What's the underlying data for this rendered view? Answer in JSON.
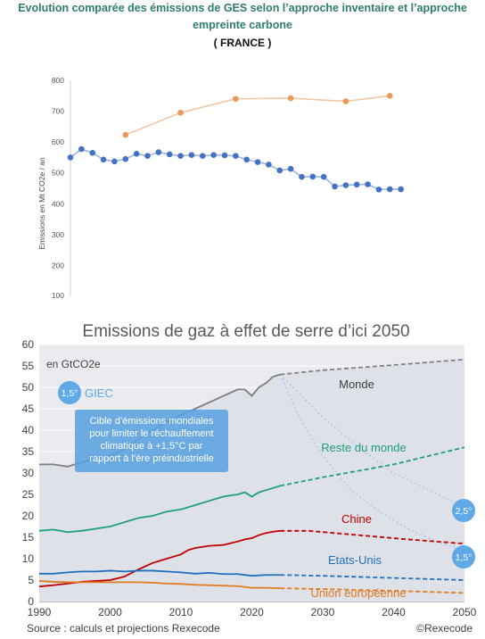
{
  "chart_data": [
    {
      "type": "line",
      "title_lines": [
        "Evolution comparée des émissions de GES selon l’approche inventaire et l’approche",
        "empreinte carbone"
      ],
      "subtitle": "( FRANCE )",
      "ylabel": "Emissions en Mt CO2e / an",
      "ylim": [
        100,
        800
      ],
      "yticks": [
        200,
        300,
        400,
        500,
        600,
        700,
        800
      ],
      "partial_tick": "100",
      "xlim": [
        1990,
        2021
      ],
      "series": [
        {
          "color": "#e99a5a",
          "x": [
            1995,
            2000,
            2005,
            2010,
            2015,
            2019
          ],
          "values": [
            623,
            695,
            740,
            742,
            732,
            750
          ]
        },
        {
          "color": "#4472c4",
          "x": [
            1990,
            1991,
            1992,
            1993,
            1994,
            1995,
            1996,
            1997,
            1998,
            1999,
            2000,
            2001,
            2002,
            2003,
            2004,
            2005,
            2006,
            2007,
            2008,
            2009,
            2010,
            2011,
            2012,
            2013,
            2014,
            2015,
            2016,
            2017,
            2018,
            2019,
            2020
          ],
          "values": [
            550,
            577,
            565,
            543,
            537,
            545,
            562,
            555,
            567,
            560,
            555,
            558,
            555,
            558,
            557,
            555,
            543,
            535,
            527,
            508,
            513,
            487,
            488,
            487,
            456,
            460,
            462,
            463,
            446,
            447,
            447
          ]
        }
      ]
    },
    {
      "type": "area",
      "title": "Emissions de gaz à effet de serre d’ici 2050",
      "unit_label": "en GtCO2e",
      "ylim": [
        0,
        60
      ],
      "yticks": [
        0,
        5,
        10,
        15,
        20,
        25,
        30,
        35,
        40,
        45,
        50,
        55,
        60
      ],
      "xlim": [
        1990,
        2050
      ],
      "xticks": [
        1990,
        2000,
        2010,
        2020,
        2030,
        2040,
        2050
      ],
      "source": "Source : calculs et projections Rexecode",
      "copyright": "©Rexecode",
      "series": [
        {
          "name": "Monde",
          "color": "#7f7f7f",
          "x": [
            1990,
            1992,
            1994,
            1996,
            1998,
            2000,
            2002,
            2004,
            2006,
            2008,
            2010,
            2012,
            2014,
            2016,
            2018,
            2019,
            2020,
            2021,
            2022,
            2023,
            2024
          ],
          "values": [
            32,
            32,
            31.5,
            32.5,
            33.5,
            34,
            35.5,
            38,
            40,
            42,
            43.5,
            45,
            46.5,
            48,
            49.5,
            49.5,
            48,
            50,
            51,
            52.5,
            53
          ],
          "proj_x": [
            2024,
            2030,
            2040,
            2050
          ],
          "proj_values": [
            53,
            54,
            55.2,
            56.5
          ]
        },
        {
          "name": "Reste du monde",
          "color": "#1d9e7e",
          "x": [
            1990,
            1992,
            1994,
            1996,
            1998,
            2000,
            2002,
            2004,
            2006,
            2008,
            2010,
            2012,
            2014,
            2016,
            2018,
            2019,
            2020,
            2021,
            2022,
            2023,
            2024
          ],
          "values": [
            16.5,
            16.8,
            16.2,
            16.5,
            17,
            17.5,
            18.5,
            19.5,
            20,
            21,
            21.5,
            22.5,
            23.5,
            24.5,
            25,
            25.5,
            24.5,
            25.5,
            26,
            26.5,
            27
          ],
          "proj_x": [
            2024,
            2030,
            2040,
            2050
          ],
          "proj_values": [
            27,
            29,
            32,
            36
          ]
        },
        {
          "name": "Chine",
          "color": "#c00000",
          "x": [
            1990,
            1992,
            1994,
            1996,
            1998,
            2000,
            2002,
            2004,
            2006,
            2008,
            2010,
            2011,
            2012,
            2014,
            2016,
            2018,
            2019,
            2020,
            2021,
            2022,
            2023,
            2024
          ],
          "values": [
            3.5,
            3.8,
            4.2,
            4.6,
            4.8,
            5,
            5.8,
            7.5,
            9,
            10,
            11,
            12,
            12.5,
            13,
            13.2,
            14,
            14.5,
            14.8,
            15.5,
            16,
            16.3,
            16.5
          ],
          "proj_x": [
            2024,
            2028,
            2035,
            2042,
            2050
          ],
          "proj_values": [
            16.5,
            16.5,
            15.5,
            14.5,
            13.5
          ]
        },
        {
          "name": "Etats-Unis",
          "color": "#1f6fbf",
          "x": [
            1990,
            1992,
            1994,
            1996,
            1998,
            2000,
            2002,
            2004,
            2006,
            2008,
            2010,
            2012,
            2014,
            2016,
            2018,
            2020,
            2022,
            2024
          ],
          "values": [
            6.5,
            6.5,
            6.8,
            7,
            7,
            7.2,
            7,
            7.2,
            7.2,
            7,
            6.8,
            6.5,
            6.7,
            6.4,
            6.4,
            6,
            6.2,
            6.2
          ],
          "proj_x": [
            2024,
            2030,
            2040,
            2050
          ],
          "proj_values": [
            6.2,
            6,
            5.5,
            5
          ]
        },
        {
          "name": "Union européenne",
          "color": "#e07a1f",
          "x": [
            1990,
            1992,
            1994,
            1996,
            1998,
            2000,
            2002,
            2004,
            2006,
            2008,
            2010,
            2012,
            2014,
            2016,
            2018,
            2020,
            2022,
            2024
          ],
          "values": [
            4.8,
            4.6,
            4.5,
            4.5,
            4.5,
            4.5,
            4.5,
            4.5,
            4.4,
            4.2,
            4.1,
            3.9,
            3.8,
            3.7,
            3.6,
            3.2,
            3.2,
            3.1
          ],
          "proj_x": [
            2024,
            2030,
            2040,
            2050
          ],
          "proj_values": [
            3.1,
            2.9,
            2.5,
            2
          ]
        }
      ],
      "scenarios": [
        {
          "label": "2,5°",
          "color": "#5ea9e8",
          "x": [
            2024,
            2030,
            2035,
            2040,
            2045,
            2050
          ],
          "values": [
            53,
            43,
            36,
            30,
            26,
            22
          ]
        },
        {
          "label": "1,5°",
          "color": "#5ea9e8",
          "x": [
            2024,
            2027,
            2030,
            2034,
            2038,
            2042,
            2046,
            2050
          ],
          "values": [
            53,
            42,
            34,
            26,
            21,
            17,
            14,
            12
          ]
        }
      ],
      "annotation": {
        "badge": "1,5°",
        "heading": "GIEC",
        "lines": [
          "Cible d’émissions mondiales",
          "pour limiter le réchauffement",
          "climatique à +1,5°C par",
          "rapport à l’ère préindustrielle"
        ]
      }
    }
  ]
}
